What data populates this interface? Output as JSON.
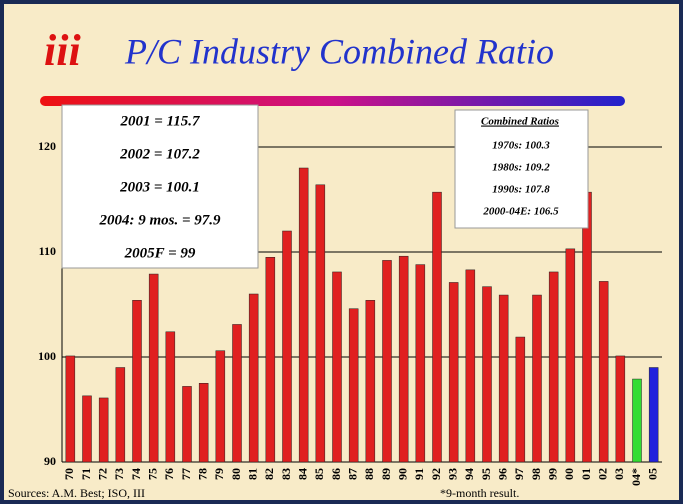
{
  "chart_data": {
    "type": "bar",
    "logo": "iii",
    "title": "P/C Industry Combined Ratio",
    "categories": [
      "70",
      "71",
      "72",
      "73",
      "74",
      "75",
      "76",
      "77",
      "78",
      "79",
      "80",
      "81",
      "82",
      "83",
      "84",
      "85",
      "86",
      "87",
      "88",
      "89",
      "90",
      "91",
      "92",
      "93",
      "94",
      "95",
      "96",
      "97",
      "98",
      "99",
      "00",
      "01",
      "02",
      "03",
      "04*",
      "05"
    ],
    "values": [
      100.1,
      96.3,
      96.1,
      99.0,
      105.4,
      107.9,
      102.4,
      97.2,
      97.5,
      100.6,
      103.1,
      106.0,
      109.5,
      112.0,
      118.0,
      116.4,
      108.1,
      104.6,
      105.4,
      109.2,
      109.6,
      108.8,
      115.7,
      107.1,
      108.3,
      106.7,
      105.9,
      101.9,
      105.9,
      108.1,
      110.3,
      115.7,
      107.2,
      100.1,
      97.9,
      99
    ],
    "colors": [
      "#e02020",
      "#e02020",
      "#e02020",
      "#e02020",
      "#e02020",
      "#e02020",
      "#e02020",
      "#e02020",
      "#e02020",
      "#e02020",
      "#e02020",
      "#e02020",
      "#e02020",
      "#e02020",
      "#e02020",
      "#e02020",
      "#e02020",
      "#e02020",
      "#e02020",
      "#e02020",
      "#e02020",
      "#e02020",
      "#e02020",
      "#e02020",
      "#e02020",
      "#e02020",
      "#e02020",
      "#e02020",
      "#e02020",
      "#e02020",
      "#e02020",
      "#e02020",
      "#e02020",
      "#e02020",
      "#33dd33",
      "#2222dd"
    ],
    "ylim": [
      90,
      122
    ],
    "yticks": [
      90,
      100,
      110,
      120
    ],
    "grid": true,
    "annotations_left": [
      "2001 = 115.7",
      "2002 = 107.2",
      "2003 = 100.1",
      "2004: 9 mos. = 97.9",
      "2005F = 99"
    ],
    "annotations_right": {
      "title": "Combined Ratios",
      "lines": [
        "1970s: 100.3",
        "1980s: 109.2",
        "1990s: 107.8",
        "2000-04E: 106.5"
      ]
    },
    "source": "Sources: A.M. Best; ISO, III",
    "footnote": "*9-month result."
  }
}
